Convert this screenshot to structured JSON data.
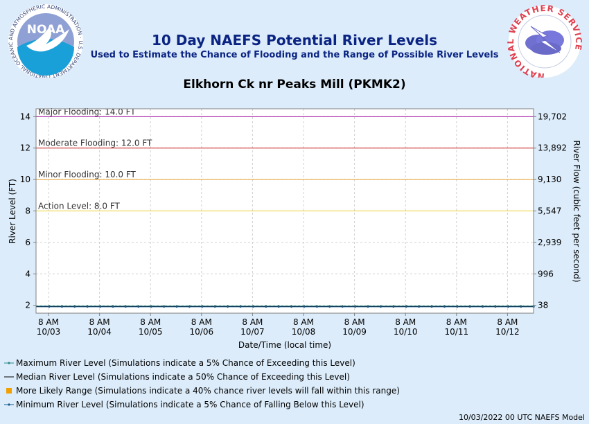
{
  "header": {
    "title": "10 Day NAEFS Potential River Levels",
    "subtitle": "Used to Estimate the Chance of Flooding and the Range of Possible River Levels",
    "station": "Elkhorn Ck nr Peaks Mill (PKMK2)"
  },
  "logos": {
    "noaa_text": "NOAA",
    "noaa_ring": "NATIONAL OCEANIC AND ATMOSPHERIC ADMINISTRATION · U.S. DEPARTMENT OF COMMERCE",
    "nws_ring": "NATIONAL WEATHER SERVICE"
  },
  "chart_data": {
    "type": "line",
    "xlabel": "Date/Time (local time)",
    "ylabel": "River Level (FT)",
    "y2label": "River Flow (cubic feet per second)",
    "ylim": [
      1.5,
      14.5
    ],
    "yticks": [
      2,
      4,
      6,
      8,
      10,
      12,
      14
    ],
    "y2ticks": [
      "38",
      "996",
      "2,939",
      "5,547",
      "9,130",
      "13,892",
      "19,702"
    ],
    "xticks": [
      {
        "time": "8 AM",
        "date": "10/03"
      },
      {
        "time": "8 AM",
        "date": "10/04"
      },
      {
        "time": "8 AM",
        "date": "10/05"
      },
      {
        "time": "8 AM",
        "date": "10/06"
      },
      {
        "time": "8 AM",
        "date": "10/07"
      },
      {
        "time": "8 AM",
        "date": "10/08"
      },
      {
        "time": "8 AM",
        "date": "10/09"
      },
      {
        "time": "8 AM",
        "date": "10/10"
      },
      {
        "time": "8 AM",
        "date": "10/11"
      },
      {
        "time": "8 AM",
        "date": "10/12"
      }
    ],
    "thresholds": [
      {
        "label": "Major Flooding: 14.0 FT",
        "value": 14.0,
        "color": "#aa22aa"
      },
      {
        "label": "Moderate Flooding: 12.0 FT",
        "value": 12.0,
        "color": "#cc2222"
      },
      {
        "label": "Minor Flooding: 10.0 FT",
        "value": 10.0,
        "color": "#e8a030"
      },
      {
        "label": "Action Level: 8.0 FT",
        "value": 8.0,
        "color": "#e8d030"
      }
    ],
    "series": [
      {
        "name": "Maximum River Level",
        "values_start": 1.95,
        "values_end": 1.95
      },
      {
        "name": "Median River Level",
        "values_start": 1.92,
        "values_end": 1.92
      },
      {
        "name": "Minimum River Level",
        "values_start": 1.9,
        "values_end": 1.9
      }
    ],
    "grid": true
  },
  "legend": [
    {
      "label": "Maximum River Level (Simulations indicate a 5% Chance of Exceeding this Level)",
      "color": "#2a8a8a"
    },
    {
      "label": "Median River Level (Simulations indicate a 50% Chance of Exceeding this Level)",
      "color": "#000000"
    },
    {
      "label": "More Likely Range (Simulations indicate a 40% chance river levels will fall within this range)",
      "color": "#f0a000"
    },
    {
      "label": "Minimum River Level (Simulations indicate a 5% Chance of Falling Below this Level)",
      "color": "#1a5a8a"
    }
  ],
  "footer": "10/03/2022 00 UTC NAEFS Model"
}
